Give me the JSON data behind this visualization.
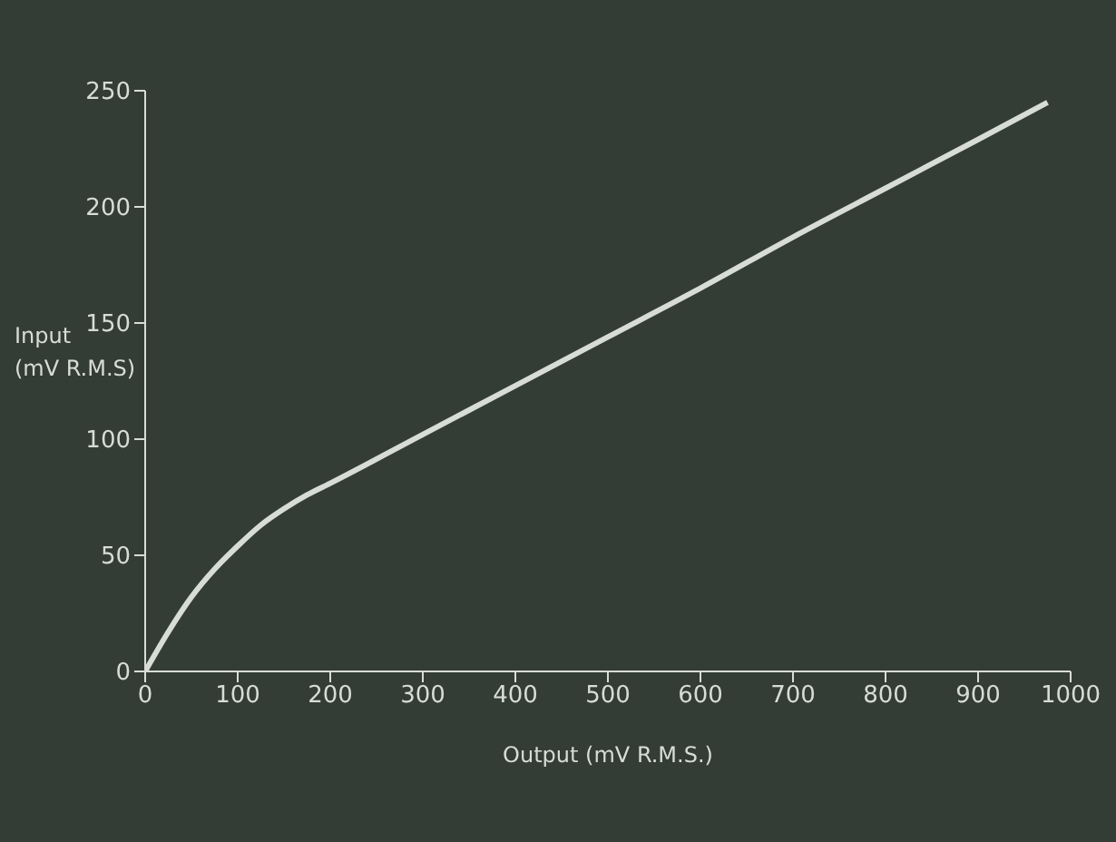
{
  "chart_data": {
    "type": "line",
    "xlabel": "Output (mV R.M.S.)",
    "ylabel": "Input\n(mV R.M.S)",
    "x": [
      0,
      25,
      50,
      75,
      100,
      125,
      150,
      175,
      200,
      300,
      400,
      500,
      600,
      700,
      800,
      900,
      975
    ],
    "series": [
      {
        "color": "#d8dcd6",
        "values": [
          0,
          17,
          32,
          44,
          54,
          63,
          70,
          76,
          81,
          102,
          123,
          144,
          165,
          187,
          208,
          229,
          245
        ]
      }
    ],
    "xlim": [
      0,
      1000
    ],
    "xticks": [
      0,
      100,
      200,
      300,
      400,
      500,
      600,
      700,
      800,
      900,
      1000
    ],
    "ylim": [
      0,
      250
    ],
    "yticks": [
      0,
      50,
      100,
      150,
      200,
      250
    ],
    "grid": false,
    "legend": false,
    "marker": "none",
    "line_style": "solid"
  }
}
